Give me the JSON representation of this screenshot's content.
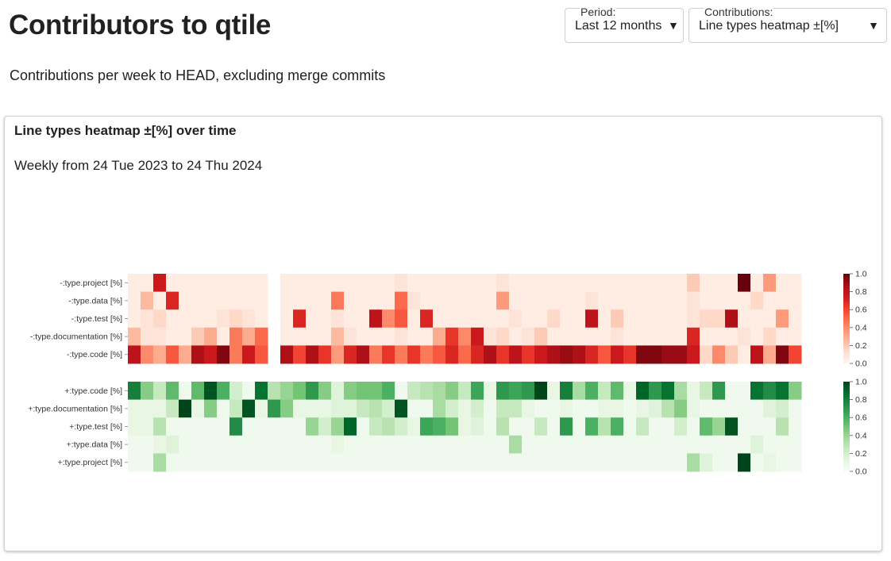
{
  "page": {
    "title": "Contributors to qtile",
    "subtitle": "Contributions per week to HEAD, excluding merge commits"
  },
  "controls": {
    "period": {
      "label": "Period:",
      "value": "Last 12 months"
    },
    "contributions": {
      "label": "Contributions:",
      "value": "Line types heatmap ±[%]"
    }
  },
  "card": {
    "title": "Line types heatmap ±[%] over time",
    "subtitle": "Weekly from 24 Tue 2023 to 24 Thu 2024"
  },
  "colors": {
    "red_scale": [
      "#fff5f0",
      "#67000d"
    ],
    "green_scale": [
      "#f7fcf5",
      "#00441b"
    ]
  },
  "chart_data": {
    "type": "heatmap",
    "weeks": 53,
    "colorbar_ticks": [
      "0.0",
      "0.2",
      "0.4",
      "0.6",
      "0.8",
      "1.0"
    ],
    "red": {
      "rows": [
        "-:type.project [%]",
        "-:type.data [%]",
        "-:type.test [%]",
        "-:type.documentation [%]",
        "-:type.code [%]"
      ],
      "colorscale": "Reds",
      "range": [
        0,
        1
      ],
      "values": [
        [
          0.05,
          0.05,
          0.75,
          0.05,
          0.05,
          0.05,
          0.05,
          0.05,
          0.05,
          0.05,
          0.05,
          null,
          0.05,
          0.05,
          0.05,
          0.05,
          0.05,
          0.05,
          0.05,
          0.05,
          0.05,
          0.1,
          0.05,
          0.05,
          0.05,
          0.05,
          0.05,
          0.05,
          0.05,
          0.1,
          0.05,
          0.05,
          0.05,
          0.05,
          0.05,
          0.05,
          0.05,
          0.05,
          0.05,
          0.05,
          0.05,
          0.05,
          0.05,
          0.05,
          0.2,
          0.05,
          0.05,
          0.05,
          1.0,
          0.05,
          0.35,
          0.05,
          0.05
        ],
        [
          0.05,
          0.25,
          0.05,
          0.7,
          0.05,
          0.05,
          0.05,
          0.05,
          0.05,
          0.05,
          0.05,
          null,
          0.05,
          0.05,
          0.05,
          0.05,
          0.45,
          0.05,
          0.05,
          0.05,
          0.05,
          0.5,
          0.1,
          0.05,
          0.05,
          0.05,
          0.05,
          0.05,
          0.05,
          0.35,
          0.05,
          0.05,
          0.05,
          0.05,
          0.05,
          0.05,
          0.1,
          0.05,
          0.05,
          0.05,
          0.05,
          0.05,
          0.05,
          0.05,
          0.1,
          0.05,
          0.05,
          0.05,
          0.05,
          0.15,
          0.05,
          0.05,
          0.05
        ],
        [
          0.05,
          0.1,
          0.15,
          0.05,
          0.05,
          0.05,
          0.05,
          0.1,
          0.15,
          0.1,
          0.05,
          null,
          0.05,
          0.7,
          0.05,
          0.05,
          0.1,
          0.05,
          0.05,
          0.8,
          0.4,
          0.55,
          0.05,
          0.7,
          0.05,
          0.05,
          0.05,
          0.05,
          0.05,
          0.05,
          0.1,
          0.05,
          0.05,
          0.15,
          0.05,
          0.05,
          0.8,
          0.05,
          0.2,
          0.05,
          0.05,
          0.05,
          0.05,
          0.05,
          0.1,
          0.15,
          0.15,
          0.85,
          0.05,
          0.05,
          0.05,
          0.35,
          0.05
        ],
        [
          0.25,
          0.1,
          0.1,
          0.05,
          0.05,
          0.2,
          0.3,
          0.05,
          0.45,
          0.3,
          0.5,
          null,
          0.05,
          0.05,
          0.05,
          0.05,
          0.25,
          0.1,
          0.05,
          0.05,
          0.05,
          0.1,
          0.05,
          0.05,
          0.3,
          0.65,
          0.4,
          0.75,
          0.1,
          0.15,
          0.05,
          0.1,
          0.2,
          0.05,
          0.05,
          0.05,
          0.05,
          0.05,
          0.1,
          0.05,
          0.05,
          0.05,
          0.05,
          0.05,
          0.7,
          0.05,
          0.05,
          0.05,
          0.1,
          0.05,
          0.15,
          0.05,
          0.05
        ],
        [
          0.8,
          0.4,
          0.3,
          0.55,
          0.3,
          0.85,
          0.75,
          0.95,
          0.45,
          0.75,
          0.55,
          null,
          0.85,
          0.6,
          0.85,
          0.65,
          0.35,
          0.7,
          0.85,
          0.45,
          0.65,
          0.45,
          0.65,
          0.45,
          0.55,
          0.7,
          0.5,
          0.7,
          0.85,
          0.65,
          0.8,
          0.65,
          0.75,
          0.85,
          0.9,
          0.85,
          0.7,
          0.55,
          0.75,
          0.65,
          0.95,
          0.95,
          0.9,
          0.9,
          0.75,
          0.15,
          0.4,
          0.2,
          0.05,
          0.8,
          0.3,
          0.95,
          0.6
        ]
      ]
    },
    "green": {
      "rows": [
        "+:type.code [%]",
        "+:type.documentation [%]",
        "+:type.test [%]",
        "+:type.data [%]",
        "+:type.project [%]"
      ],
      "colorscale": "Greens",
      "range": [
        0,
        1
      ],
      "values": [
        [
          0.8,
          0.45,
          0.25,
          0.55,
          0.05,
          0.55,
          0.95,
          0.6,
          0.2,
          0.05,
          0.85,
          0.3,
          0.4,
          0.5,
          0.7,
          0.45,
          0.15,
          0.45,
          0.5,
          0.5,
          0.6,
          0.05,
          0.25,
          0.3,
          0.35,
          0.45,
          0.25,
          0.65,
          0.1,
          0.7,
          0.65,
          0.7,
          1.0,
          0.1,
          0.8,
          0.35,
          0.6,
          0.25,
          0.55,
          0.1,
          0.9,
          0.7,
          0.85,
          0.35,
          0.1,
          0.25,
          0.7,
          0.05,
          0.05,
          0.85,
          0.75,
          0.85,
          0.45
        ],
        [
          0.1,
          0.1,
          0.1,
          0.25,
          1.0,
          0.1,
          0.45,
          0.05,
          0.25,
          0.95,
          0.1,
          0.7,
          0.45,
          0.1,
          0.1,
          0.1,
          0.15,
          0.15,
          0.25,
          0.3,
          0.2,
          0.95,
          0.05,
          0.05,
          0.35,
          0.2,
          0.1,
          0.2,
          0.05,
          0.25,
          0.25,
          0.1,
          0.05,
          0.05,
          0.1,
          0.05,
          0.05,
          0.1,
          0.1,
          0.05,
          0.1,
          0.15,
          0.3,
          0.45,
          0.1,
          0.05,
          0.05,
          0.05,
          0.05,
          0.05,
          0.15,
          0.2,
          0.05
        ],
        [
          0.1,
          0.1,
          0.3,
          0.05,
          0.05,
          0.05,
          0.05,
          0.05,
          0.75,
          0.05,
          0.05,
          0.05,
          0.05,
          0.05,
          0.4,
          0.2,
          0.4,
          0.9,
          0.05,
          0.25,
          0.3,
          0.2,
          0.1,
          0.65,
          0.6,
          0.5,
          0.1,
          0.15,
          0.05,
          0.3,
          0.05,
          0.05,
          0.25,
          0.05,
          0.7,
          0.05,
          0.6,
          0.3,
          0.6,
          0.05,
          0.25,
          0.05,
          0.05,
          0.2,
          0.05,
          0.55,
          0.4,
          0.95,
          0.05,
          0.05,
          0.05,
          0.3,
          0.05
        ],
        [
          0.05,
          0.05,
          0.1,
          0.15,
          0.05,
          0.05,
          0.05,
          0.05,
          0.05,
          0.05,
          0.05,
          0.05,
          0.05,
          0.05,
          0.05,
          0.05,
          0.1,
          0.05,
          0.05,
          0.05,
          0.05,
          0.05,
          0.05,
          0.05,
          0.05,
          0.05,
          0.05,
          0.05,
          0.05,
          0.05,
          0.35,
          0.05,
          0.05,
          0.05,
          0.05,
          0.05,
          0.05,
          0.05,
          0.05,
          0.05,
          0.05,
          0.05,
          0.05,
          0.05,
          0.05,
          0.05,
          0.05,
          0.05,
          0.05,
          0.15,
          0.05,
          0.05,
          0.05
        ],
        [
          0.05,
          0.05,
          0.35,
          0.05,
          0.05,
          0.05,
          0.05,
          0.05,
          0.05,
          0.05,
          0.05,
          0.05,
          0.05,
          0.05,
          0.05,
          0.05,
          0.05,
          0.05,
          0.05,
          0.05,
          0.05,
          0.05,
          0.05,
          0.05,
          0.05,
          0.05,
          0.05,
          0.05,
          0.05,
          0.05,
          0.05,
          0.05,
          0.05,
          0.05,
          0.05,
          0.05,
          0.05,
          0.05,
          0.05,
          0.05,
          0.05,
          0.05,
          0.05,
          0.05,
          0.35,
          0.15,
          0.05,
          0.05,
          1.0,
          0.05,
          0.1,
          0.05,
          0.05
        ]
      ]
    }
  }
}
